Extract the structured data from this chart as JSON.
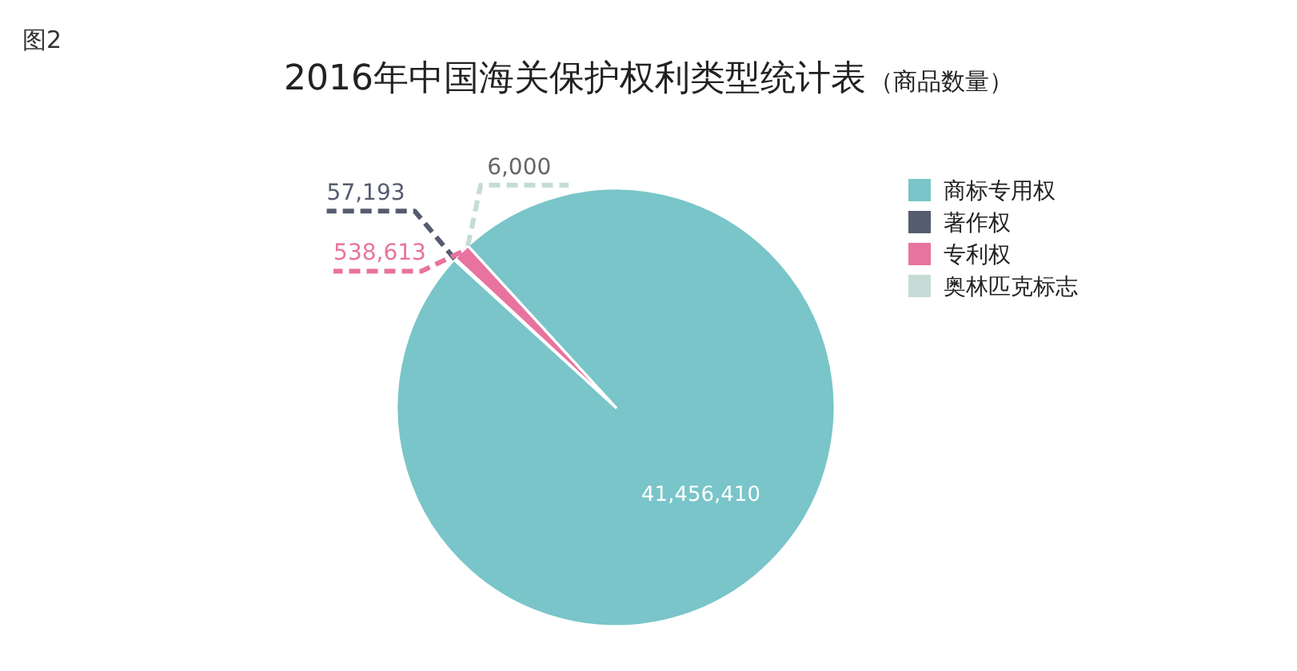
{
  "chart_data": {
    "type": "pie",
    "title": "2016年中国海关保护权利类型统计表",
    "subtitle": "（商品数量）",
    "annotations": [
      "图2"
    ],
    "categories": [
      "商标专用权",
      "著作权",
      "专利权",
      "奥林匹克标志"
    ],
    "values": [
      41456410,
      57193,
      538613,
      6000
    ],
    "colors": [
      "#79c5c9",
      "#555c6e",
      "#e8739f",
      "#c5dcd6"
    ],
    "value_labels": [
      "41,456,410",
      "57,193",
      "538,613",
      "6,000"
    ],
    "legend": "right"
  }
}
